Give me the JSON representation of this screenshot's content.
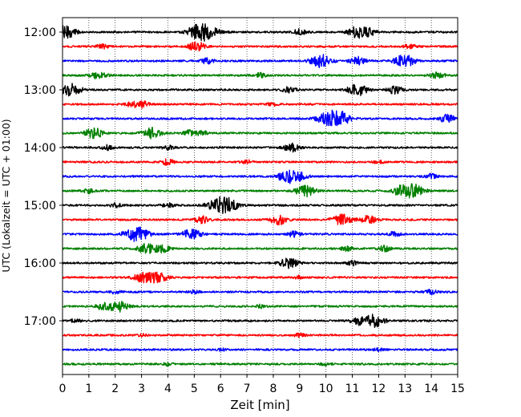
{
  "chart_data": {
    "type": "line",
    "title": "",
    "xlabel": "Zeit  [min]",
    "ylabel": "UTC (Lokalzeit = UTC + 01:00)",
    "xlim": [
      0,
      15
    ],
    "x_ticks": [
      "0",
      "1",
      "2",
      "3",
      "4",
      "5",
      "6",
      "7",
      "8",
      "9",
      "10",
      "11",
      "12",
      "13",
      "14",
      "15"
    ],
    "y_ticks": [
      "12:00",
      "13:00",
      "14:00",
      "15:00",
      "16:00",
      "17:00"
    ],
    "grid": "vertical dotted",
    "trace_color_cycle": [
      "#000000",
      "#ff0000",
      "#0000ff",
      "#008000"
    ],
    "traces": [
      {
        "start": "12:00",
        "events": [
          [
            0.1,
            0.55
          ],
          [
            5.4,
            0.7
          ],
          [
            5.0,
            0.35
          ],
          [
            9.0,
            0.25
          ],
          [
            11.2,
            0.5
          ],
          [
            11.6,
            0.3
          ]
        ]
      },
      {
        "start": "12:15",
        "events": [
          [
            5.1,
            0.4
          ],
          [
            1.5,
            0.2
          ],
          [
            13.2,
            0.2
          ]
        ]
      },
      {
        "start": "12:30",
        "events": [
          [
            9.8,
            0.55
          ],
          [
            11.2,
            0.35
          ],
          [
            13.1,
            0.4
          ],
          [
            5.5,
            0.25
          ],
          [
            12.8,
            0.3
          ]
        ]
      },
      {
        "start": "12:45",
        "events": [
          [
            1.4,
            0.35
          ],
          [
            14.2,
            0.3
          ],
          [
            7.5,
            0.2
          ]
        ]
      },
      {
        "start": "13:00",
        "events": [
          [
            0.3,
            0.55
          ],
          [
            11.2,
            0.5
          ],
          [
            12.6,
            0.35
          ],
          [
            8.6,
            0.25
          ]
        ]
      },
      {
        "start": "13:15",
        "events": [
          [
            3.0,
            0.3
          ],
          [
            2.6,
            0.2
          ],
          [
            8.0,
            0.15
          ]
        ]
      },
      {
        "start": "13:30",
        "events": [
          [
            10.2,
            0.7
          ],
          [
            10.7,
            0.35
          ],
          [
            14.6,
            0.35
          ]
        ]
      },
      {
        "start": "13:45",
        "events": [
          [
            1.2,
            0.45
          ],
          [
            3.4,
            0.45
          ],
          [
            4.8,
            0.25
          ],
          [
            5.3,
            0.2
          ]
        ]
      },
      {
        "start": "14:00",
        "events": [
          [
            8.7,
            0.35
          ],
          [
            4.0,
            0.2
          ],
          [
            1.7,
            0.2
          ]
        ]
      },
      {
        "start": "14:15",
        "events": [
          [
            4.0,
            0.25
          ],
          [
            7.0,
            0.15
          ],
          [
            12.0,
            0.15
          ]
        ]
      },
      {
        "start": "14:30",
        "events": [
          [
            8.8,
            0.55
          ],
          [
            8.4,
            0.3
          ],
          [
            14.0,
            0.2
          ]
        ]
      },
      {
        "start": "14:45",
        "events": [
          [
            9.2,
            0.5
          ],
          [
            13.3,
            0.6
          ],
          [
            12.8,
            0.35
          ],
          [
            1.0,
            0.2
          ]
        ]
      },
      {
        "start": "15:00",
        "events": [
          [
            6.0,
            0.7
          ],
          [
            6.4,
            0.3
          ],
          [
            2.0,
            0.2
          ],
          [
            4.0,
            0.2
          ]
        ]
      },
      {
        "start": "15:15",
        "events": [
          [
            8.2,
            0.4
          ],
          [
            10.6,
            0.5
          ],
          [
            11.6,
            0.35
          ],
          [
            5.3,
            0.3
          ]
        ]
      },
      {
        "start": "15:30",
        "events": [
          [
            2.8,
            0.65
          ],
          [
            4.9,
            0.45
          ],
          [
            8.8,
            0.25
          ],
          [
            12.6,
            0.2
          ]
        ]
      },
      {
        "start": "15:45",
        "events": [
          [
            3.2,
            0.45
          ],
          [
            3.8,
            0.3
          ],
          [
            10.8,
            0.2
          ],
          [
            12.2,
            0.25
          ]
        ]
      },
      {
        "start": "16:00",
        "events": [
          [
            8.6,
            0.45
          ],
          [
            11.0,
            0.2
          ]
        ]
      },
      {
        "start": "16:15",
        "events": [
          [
            3.0,
            0.4
          ],
          [
            3.6,
            0.5
          ],
          [
            9.0,
            0.15
          ]
        ]
      },
      {
        "start": "16:30",
        "events": [
          [
            14.0,
            0.2
          ],
          [
            5.0,
            0.15
          ],
          [
            2.0,
            0.15
          ]
        ]
      },
      {
        "start": "16:45",
        "events": [
          [
            2.1,
            0.5
          ],
          [
            1.5,
            0.25
          ],
          [
            7.5,
            0.15
          ]
        ]
      },
      {
        "start": "17:00",
        "events": [
          [
            11.8,
            0.55
          ],
          [
            11.2,
            0.3
          ],
          [
            0.5,
            0.15
          ]
        ]
      },
      {
        "start": "17:15",
        "events": [
          [
            9.0,
            0.15
          ],
          [
            3.0,
            0.12
          ]
        ]
      },
      {
        "start": "17:30",
        "events": [
          [
            6.0,
            0.12
          ],
          [
            12.0,
            0.12
          ]
        ]
      },
      {
        "start": "17:45",
        "events": [
          [
            4.0,
            0.12
          ],
          [
            10.0,
            0.12
          ]
        ]
      }
    ]
  }
}
